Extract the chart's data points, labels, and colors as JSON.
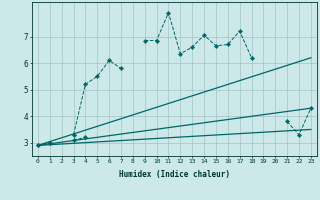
{
  "xlabel": "Humidex (Indice chaleur)",
  "x": [
    0,
    1,
    2,
    3,
    4,
    5,
    6,
    7,
    8,
    9,
    10,
    11,
    12,
    13,
    14,
    15,
    16,
    17,
    18,
    19,
    20,
    21,
    22,
    23
  ],
  "line1": [
    2.9,
    3.0,
    null,
    3.3,
    5.2,
    5.5,
    6.1,
    5.8,
    null,
    6.85,
    6.85,
    7.9,
    6.35,
    6.6,
    7.05,
    6.65,
    6.7,
    7.2,
    6.2,
    null,
    null,
    3.8,
    3.3,
    4.3
  ],
  "line2": [
    2.9,
    3.0,
    null,
    3.1,
    3.2,
    null,
    null,
    null,
    null,
    null,
    null,
    null,
    null,
    null,
    null,
    null,
    null,
    null,
    null,
    null,
    null,
    null,
    null,
    null
  ],
  "line3_x": [
    0,
    23
  ],
  "line3_y": [
    2.9,
    6.2
  ],
  "line4_x": [
    0,
    23
  ],
  "line4_y": [
    2.9,
    4.3
  ],
  "line5_x": [
    0,
    23
  ],
  "line5_y": [
    2.9,
    3.5
  ],
  "bg_color": "#cce8e8",
  "line_color": "#006666",
  "xlim": [
    -0.5,
    23.5
  ],
  "ylim": [
    2.5,
    8.3
  ],
  "yticks": [
    3,
    4,
    5,
    6,
    7
  ],
  "xticks": [
    0,
    1,
    2,
    3,
    4,
    5,
    6,
    7,
    8,
    9,
    10,
    11,
    12,
    13,
    14,
    15,
    16,
    17,
    18,
    19,
    20,
    21,
    22,
    23
  ]
}
